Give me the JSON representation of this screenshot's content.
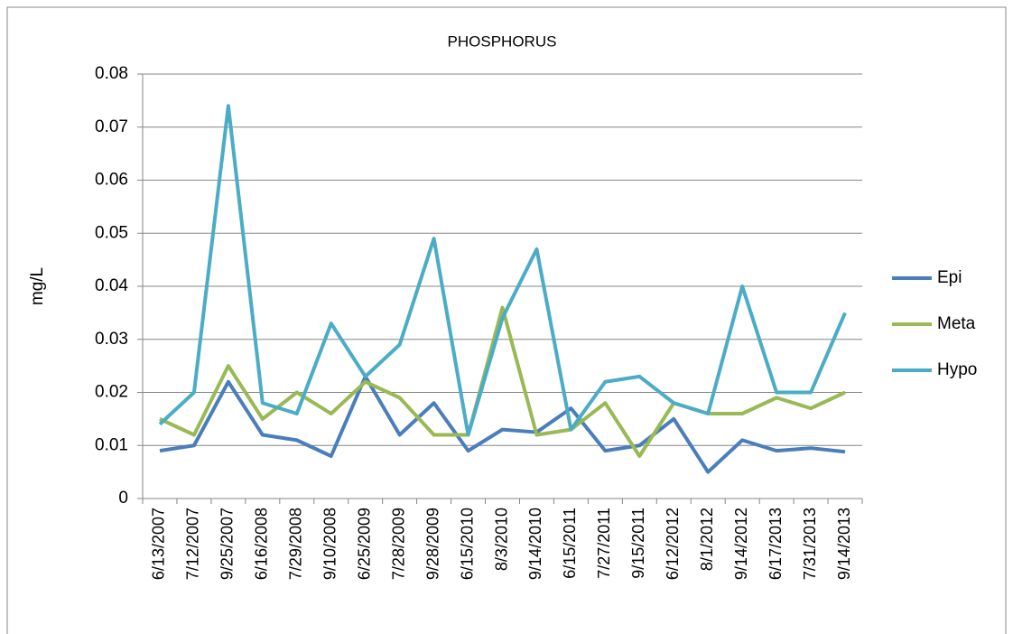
{
  "chart_data": {
    "type": "line",
    "title": "PHOSPHORUS",
    "y_label": "mg/L",
    "categories": [
      "6/13/2007",
      "7/12/2007",
      "9/25/2007",
      "6/16/2008",
      "7/29/2008",
      "9/10/2008",
      "6/25/2009",
      "7/28/2009",
      "9/28/2009",
      "6/15/2010",
      "8/3/2010",
      "9/14/2010",
      "6/15/2011",
      "7/27/2011",
      "9/15/2011",
      "6/12/2012",
      "8/1/2012",
      "9/14/2012",
      "6/17/2013",
      "7/31/2013",
      "9/14/2013"
    ],
    "series": [
      {
        "name": "Epi",
        "color": "#4a7ebb",
        "values": [
          0.009,
          0.01,
          0.022,
          0.012,
          0.011,
          0.008,
          0.023,
          0.012,
          0.018,
          0.009,
          0.013,
          0.0125,
          0.017,
          0.009,
          0.01,
          0.015,
          0.005,
          0.011,
          0.009,
          0.0095,
          0.0088
        ]
      },
      {
        "name": "Meta",
        "color": "#98b954",
        "values": [
          0.015,
          0.012,
          0.025,
          0.015,
          0.02,
          0.016,
          0.022,
          0.019,
          0.012,
          0.012,
          0.036,
          0.012,
          0.013,
          0.018,
          0.008,
          0.018,
          0.016,
          0.016,
          0.019,
          0.017,
          0.02
        ]
      },
      {
        "name": "Hypo",
        "color": "#4bacc6",
        "values": [
          0.014,
          0.02,
          0.074,
          0.018,
          0.016,
          0.033,
          0.023,
          0.029,
          0.049,
          0.012,
          0.034,
          0.047,
          0.013,
          0.022,
          0.023,
          0.018,
          0.016,
          0.04,
          0.02,
          0.02,
          0.035
        ]
      }
    ],
    "ylim": [
      0,
      0.08
    ],
    "yticks": [
      0,
      0.01,
      0.02,
      0.03,
      0.04,
      0.05,
      0.06,
      0.07,
      0.08
    ],
    "grid": true,
    "legend": "right"
  }
}
